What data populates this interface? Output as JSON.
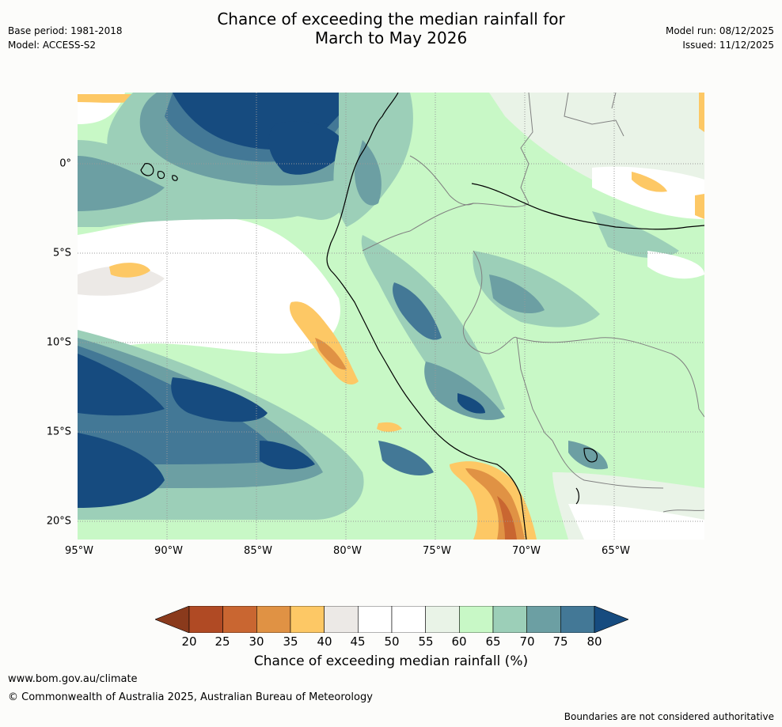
{
  "title_line1": "Chance of exceeding the median rainfall for",
  "title_line2": "March to May 2026",
  "base_period": "Base period: 1981-2018",
  "model": "Model: ACCESS-S2",
  "model_run": "Model run: 08/12/2025",
  "issued": "Issued: 11/12/2025",
  "map": {
    "lon_range": [
      -95,
      -60
    ],
    "lat_range": [
      4,
      -21
    ],
    "x_ticks": [
      "95°W",
      "90°W",
      "85°W",
      "80°W",
      "75°W",
      "70°W",
      "65°W"
    ],
    "y_ticks": [
      "0°",
      "5°S",
      "10°S",
      "15°S",
      "20°S"
    ],
    "gridlines": true
  },
  "colorbar": {
    "title": "Chance of exceeding median rainfall (%)",
    "labels": [
      "20",
      "25",
      "30",
      "35",
      "40",
      "45",
      "50",
      "55",
      "60",
      "65",
      "70",
      "75",
      "80"
    ],
    "colors": {
      "below20": "#8a3a1c",
      "b20_25": "#b04a24",
      "b25_30": "#c96631",
      "b30_35": "#e09244",
      "b35_40": "#fdc865",
      "b40_45": "#ece9e6",
      "b45_50": "#ffffff",
      "b50_55": "#ffffff",
      "b55_60": "#e9f3e7",
      "b60_65": "#c8f8c6",
      "b65_70": "#9ccfb8",
      "b70_75": "#6c9fa3",
      "b75_80": "#437896",
      "above80": "#164b7f"
    }
  },
  "footer": {
    "website": "www.bom.gov.au/climate",
    "copyright": "© Commonwealth of Australia 2025, Australian Bureau of Meteorology",
    "disclaimer": "Boundaries are not considered authoritative"
  }
}
